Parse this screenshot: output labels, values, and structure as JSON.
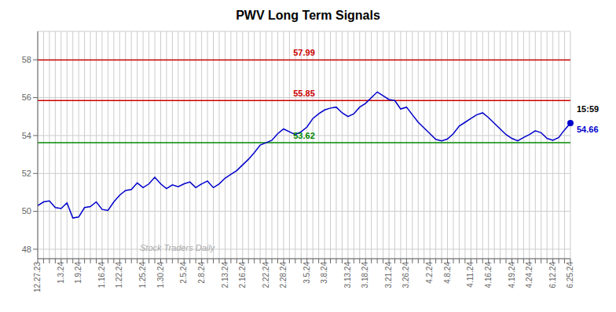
{
  "chart_data": {
    "type": "line",
    "title": "PWV Long Term Signals",
    "categories": [
      "12.27.23",
      null,
      null,
      null,
      "1.3.24",
      null,
      null,
      "1.9.24",
      null,
      null,
      null,
      "1.16.24",
      null,
      null,
      "1.22.24",
      null,
      null,
      null,
      "1.25.24",
      null,
      null,
      "1.30.24",
      null,
      null,
      null,
      "2.5.24",
      null,
      null,
      "2.8.24",
      null,
      null,
      null,
      "2.13.24",
      null,
      null,
      "2.16.24",
      null,
      null,
      null,
      "2.22.24",
      null,
      null,
      "2.28.24",
      null,
      null,
      null,
      "3.5.24",
      null,
      null,
      "3.8.24",
      null,
      null,
      null,
      "3.13.24",
      null,
      null,
      "3.18.24",
      null,
      null,
      null,
      "3.21.24",
      null,
      null,
      "3.26.24",
      null,
      null,
      null,
      "4.2.24",
      null,
      null,
      "4.8.24",
      null,
      null,
      null,
      "4.11.24",
      null,
      null,
      "4.16.24",
      null,
      null,
      null,
      "4.19.24",
      null,
      null,
      "4.24.24",
      null,
      null,
      null,
      "6.12.24",
      null,
      null,
      "6.25.24"
    ],
    "values": [
      50.3,
      50.5,
      50.55,
      50.2,
      50.15,
      50.45,
      49.65,
      49.7,
      50.2,
      50.25,
      50.5,
      50.1,
      50.05,
      50.5,
      50.85,
      51.1,
      51.15,
      51.5,
      51.25,
      51.45,
      51.8,
      51.45,
      51.2,
      51.4,
      51.3,
      51.45,
      51.55,
      51.25,
      51.45,
      51.6,
      51.25,
      51.45,
      51.75,
      51.95,
      52.15,
      52.45,
      52.75,
      53.1,
      53.5,
      53.62,
      53.75,
      54.1,
      54.35,
      54.2,
      54.05,
      54.2,
      54.45,
      54.9,
      55.15,
      55.35,
      55.45,
      55.5,
      55.2,
      55.0,
      55.15,
      55.5,
      55.7,
      56.0,
      56.3,
      56.1,
      55.9,
      55.85,
      55.4,
      55.5,
      55.1,
      54.7,
      54.4,
      54.1,
      53.8,
      53.72,
      53.82,
      54.1,
      54.5,
      54.7,
      54.9,
      55.1,
      55.2,
      54.95,
      54.65,
      54.35,
      54.05,
      53.85,
      53.72,
      53.9,
      54.05,
      54.25,
      54.15,
      53.85,
      53.75,
      53.9,
      54.3,
      54.66
    ],
    "color": "#0000cc",
    "marker": "last",
    "hlines": [
      {
        "value": 57.99,
        "label": "57.99",
        "color": "#cc0000"
      },
      {
        "value": 55.85,
        "label": "55.85",
        "color": "#cc0000"
      },
      {
        "value": 53.62,
        "label": "53.62",
        "color": "#008800"
      }
    ],
    "last_point_labels": [
      "15:59",
      "54.66"
    ],
    "watermark": "Stock Traders Daily",
    "ylim": [
      47.5,
      59.5
    ],
    "yticks": [
      48,
      50,
      52,
      54,
      56,
      58
    ],
    "grid": true
  }
}
